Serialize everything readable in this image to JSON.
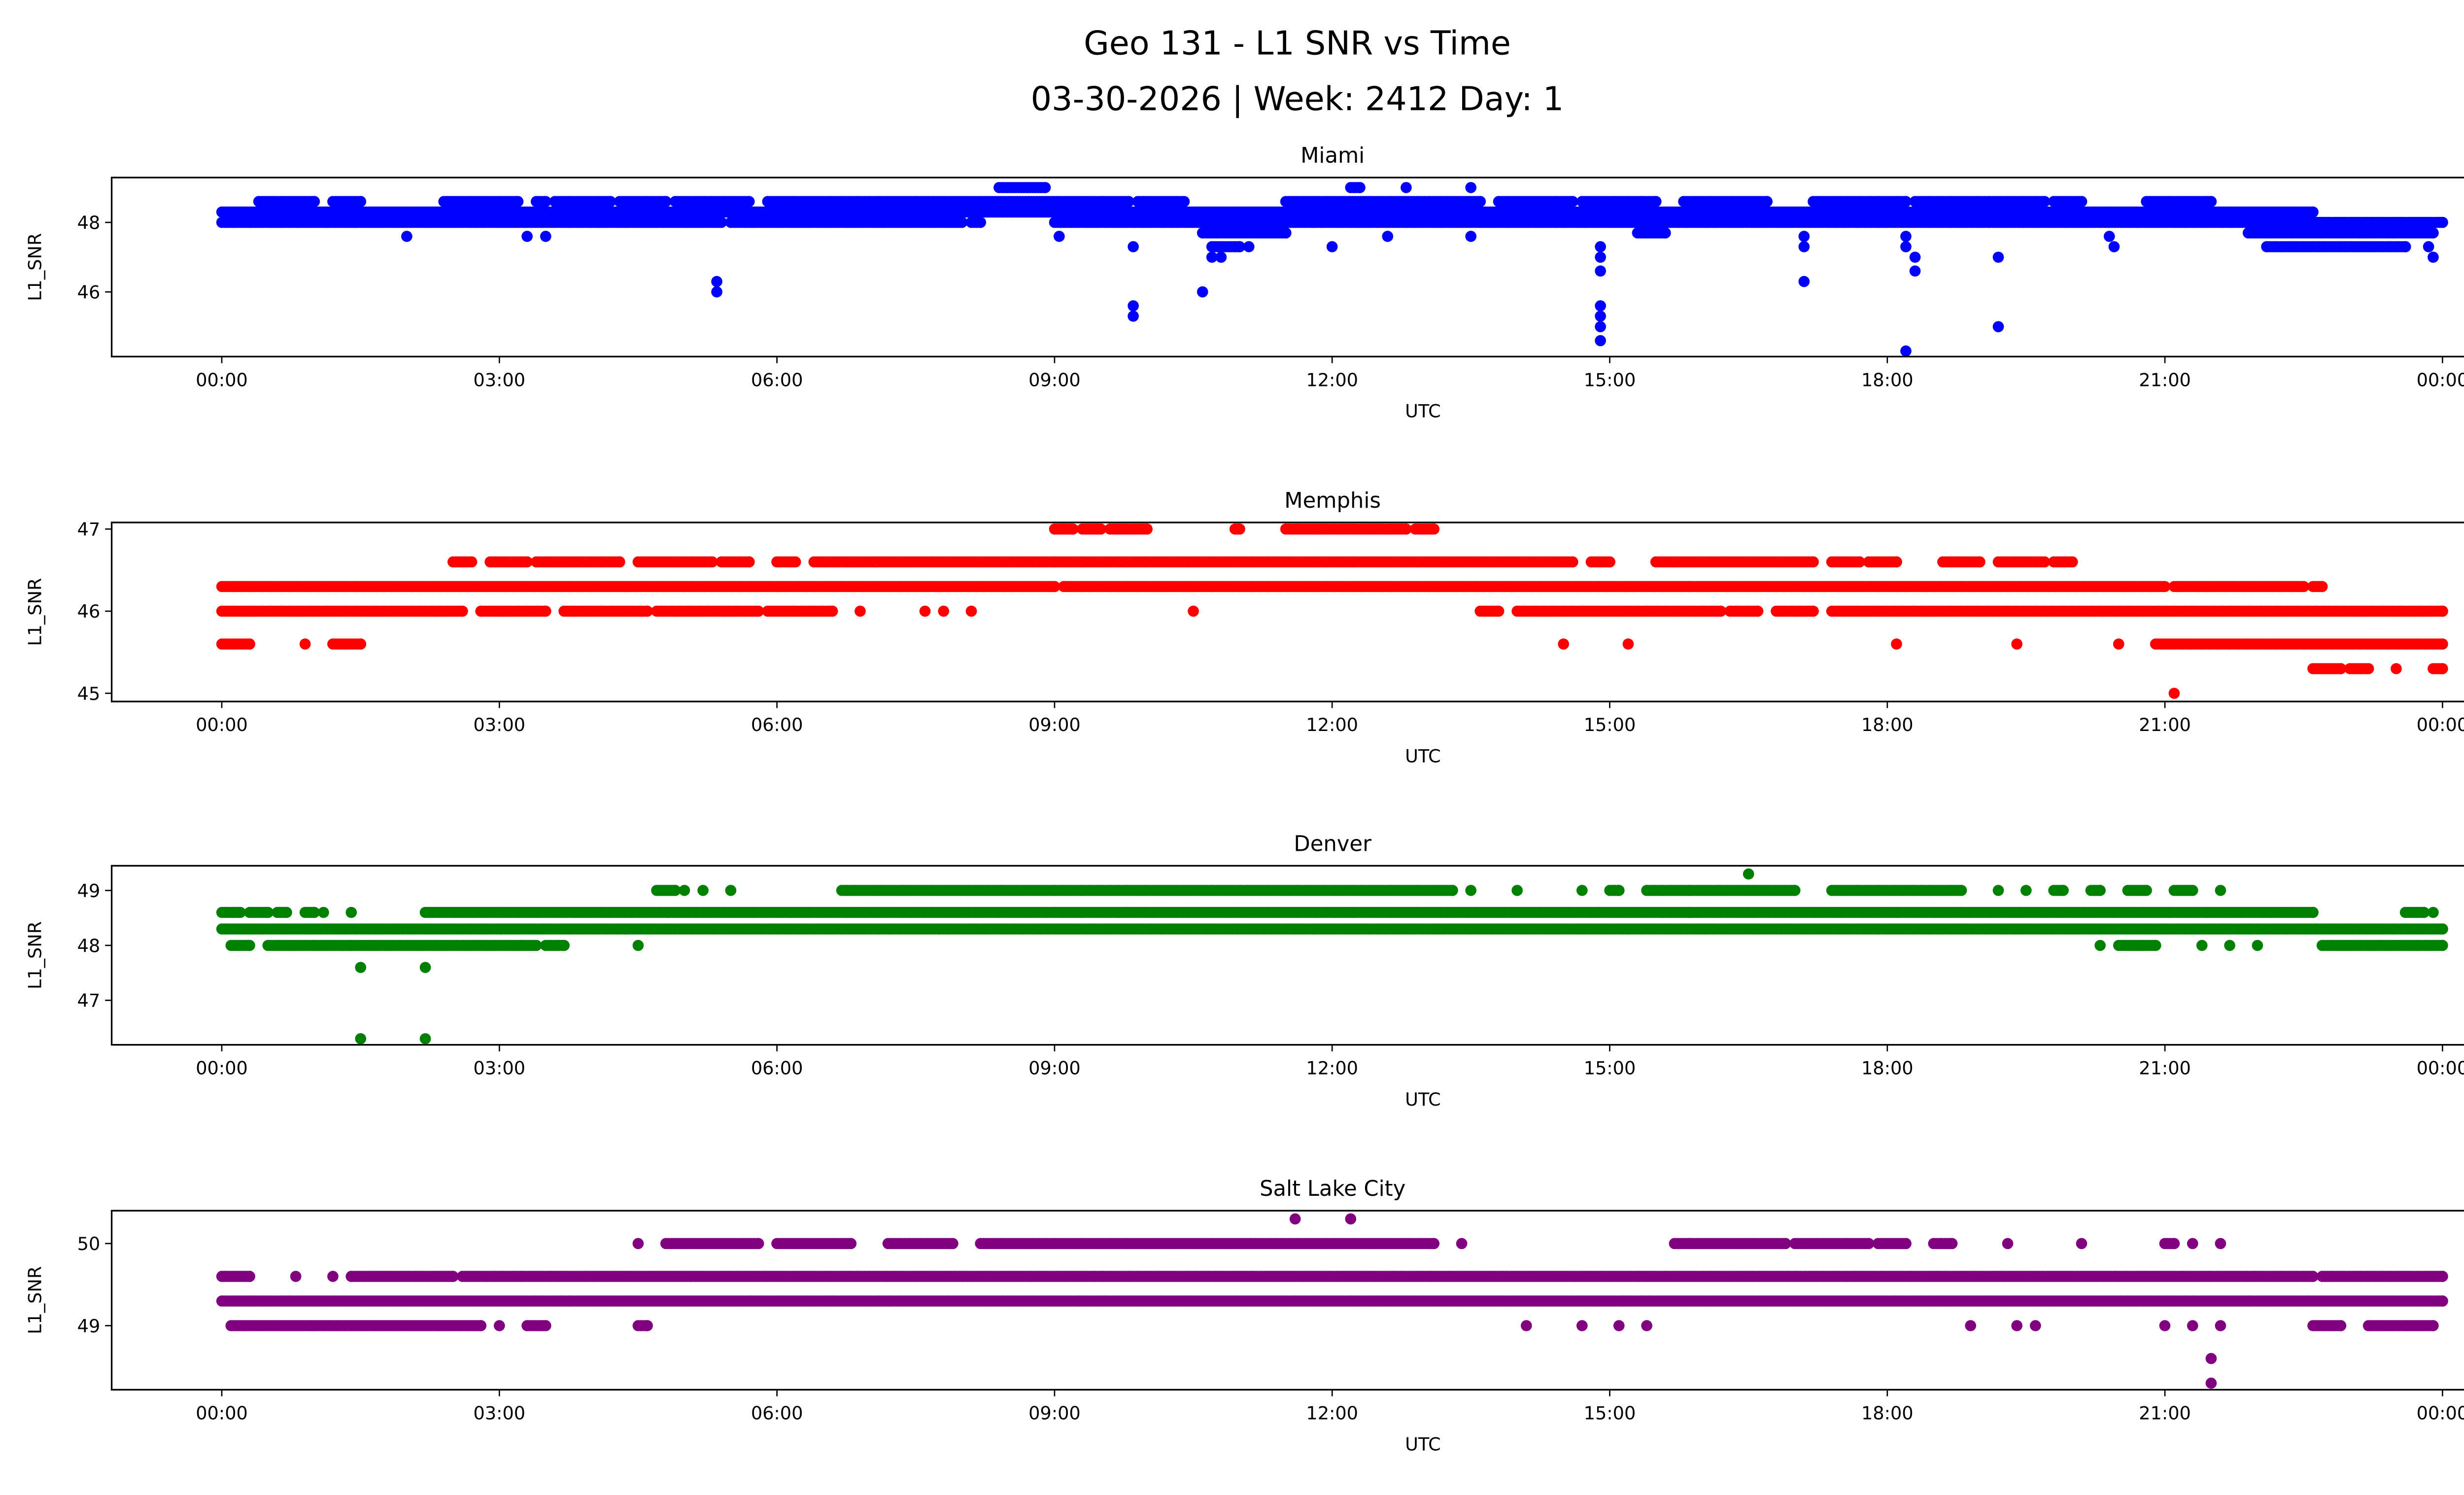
{
  "chart_data": {
    "type": "scatter",
    "title": "Geo 131 - L1 SNR vs Time",
    "subtitle": "03-30-2026 | Week: 2412 Day: 1",
    "x_unit": "hours UTC",
    "xlim": [
      -1.19,
      25.2
    ],
    "xticks": [
      0,
      3,
      6,
      9,
      12,
      15,
      18,
      21,
      24
    ],
    "xtick_labels": [
      "00:00",
      "03:00",
      "06:00",
      "09:00",
      "12:00",
      "15:00",
      "18:00",
      "21:00",
      "00:00"
    ],
    "grid": false,
    "subplots": [
      {
        "title": "Miami",
        "xlabel": "UTC",
        "ylabel": "L1_SNR",
        "color": "#0000ff",
        "ylim": [
          44.14,
          49.29
        ],
        "yticks": [
          46,
          48
        ],
        "ytick_labels": [
          "46",
          "48"
        ],
        "bands": [
          {
            "snr": 48.3,
            "ranges": [
              [
                0,
                22.6
              ]
            ]
          },
          {
            "snr": 48.0,
            "ranges": [
              [
                0,
                5.4
              ],
              [
                5.5,
                8.0
              ],
              [
                8.1,
                8.2
              ],
              [
                9.0,
                24
              ]
            ]
          },
          {
            "snr": 48.6,
            "ranges": [
              [
                0.4,
                1.0
              ],
              [
                1.2,
                1.5
              ],
              [
                2.4,
                3.2
              ],
              [
                3.4,
                3.5
              ],
              [
                3.6,
                4.2
              ],
              [
                4.3,
                4.8
              ],
              [
                4.9,
                5.7
              ],
              [
                5.9,
                9.8
              ],
              [
                9.9,
                10.4
              ],
              [
                11.5,
                13.6
              ],
              [
                13.8,
                14.6
              ],
              [
                14.7,
                15.5
              ],
              [
                15.8,
                16.7
              ],
              [
                17.2,
                18.2
              ],
              [
                18.3,
                19.7
              ],
              [
                19.8,
                20.1
              ],
              [
                20.8,
                21.5
              ]
            ]
          },
          {
            "snr": 49.0,
            "ranges": [
              [
                8.4,
                8.9
              ],
              [
                12.2,
                12.3
              ],
              [
                12.8,
                12.8
              ],
              [
                13.5,
                13.5
              ]
            ]
          },
          {
            "snr": 47.7,
            "ranges": [
              [
                10.6,
                11.5
              ],
              [
                15.3,
                15.6
              ],
              [
                21.9,
                23.9
              ]
            ]
          },
          {
            "snr": 47.3,
            "ranges": [
              [
                10.7,
                11.0
              ],
              [
                22.1,
                23.6
              ]
            ]
          }
        ],
        "points": [
          [
            2.0,
            47.6
          ],
          [
            3.3,
            47.6
          ],
          [
            3.5,
            47.6
          ],
          [
            5.35,
            46.3
          ],
          [
            5.35,
            46.0
          ],
          [
            9.05,
            47.6
          ],
          [
            9.85,
            47.3
          ],
          [
            9.85,
            45.6
          ],
          [
            9.85,
            45.3
          ],
          [
            10.6,
            46.0
          ],
          [
            10.7,
            47.0
          ],
          [
            10.8,
            47.0
          ],
          [
            11.1,
            47.3
          ],
          [
            12.0,
            47.3
          ],
          [
            12.6,
            47.6
          ],
          [
            13.5,
            47.6
          ],
          [
            14.9,
            47.3
          ],
          [
            14.9,
            47.0
          ],
          [
            14.9,
            46.6
          ],
          [
            14.9,
            45.6
          ],
          [
            14.9,
            45.3
          ],
          [
            14.9,
            45.0
          ],
          [
            14.9,
            44.6
          ],
          [
            17.1,
            47.6
          ],
          [
            17.1,
            47.3
          ],
          [
            17.1,
            46.3
          ],
          [
            18.2,
            47.6
          ],
          [
            18.2,
            47.3
          ],
          [
            18.2,
            44.3
          ],
          [
            18.3,
            47.0
          ],
          [
            18.3,
            46.6
          ],
          [
            19.2,
            47.0
          ],
          [
            19.2,
            45.0
          ],
          [
            20.4,
            47.6
          ],
          [
            20.45,
            47.3
          ],
          [
            23.9,
            47.0
          ],
          [
            23.85,
            47.3
          ]
        ]
      },
      {
        "title": "Memphis",
        "xlabel": "UTC",
        "ylabel": "L1_SNR",
        "color": "#ff0000",
        "ylim": [
          44.9,
          47.08
        ],
        "yticks": [
          45,
          46,
          47
        ],
        "ytick_labels": [
          "45",
          "46",
          "47"
        ],
        "bands": [
          {
            "snr": 46.3,
            "ranges": [
              [
                0,
                9.0
              ],
              [
                9.1,
                21.0
              ],
              [
                21.1,
                22.5
              ],
              [
                22.6,
                22.7
              ]
            ]
          },
          {
            "snr": 46.0,
            "ranges": [
              [
                0,
                2.6
              ],
              [
                2.8,
                3.5
              ],
              [
                3.7,
                4.6
              ],
              [
                4.7,
                5.8
              ],
              [
                5.9,
                6.6
              ],
              [
                6.9,
                6.9
              ],
              [
                7.6,
                7.6
              ],
              [
                7.8,
                7.8
              ],
              [
                8.1,
                8.1
              ],
              [
                10.5,
                10.5
              ],
              [
                13.6,
                13.8
              ],
              [
                14.0,
                16.2
              ],
              [
                16.3,
                16.6
              ],
              [
                16.8,
                17.2
              ],
              [
                17.4,
                24
              ]
            ]
          },
          {
            "snr": 46.6,
            "ranges": [
              [
                2.5,
                2.7
              ],
              [
                2.9,
                3.3
              ],
              [
                3.4,
                4.3
              ],
              [
                4.5,
                5.3
              ],
              [
                5.4,
                5.7
              ],
              [
                6.0,
                6.2
              ],
              [
                6.4,
                14.6
              ],
              [
                14.8,
                15.0
              ],
              [
                15.5,
                17.2
              ],
              [
                17.4,
                17.7
              ],
              [
                17.8,
                18.1
              ],
              [
                18.6,
                19.0
              ],
              [
                19.2,
                19.7
              ],
              [
                19.8,
                20.0
              ]
            ]
          },
          {
            "snr": 47.0,
            "ranges": [
              [
                9.0,
                9.2
              ],
              [
                9.3,
                9.5
              ],
              [
                9.6,
                10.0
              ],
              [
                10.95,
                11.0
              ],
              [
                11.5,
                12.8
              ],
              [
                12.9,
                13.1
              ]
            ]
          },
          {
            "snr": 45.6,
            "ranges": [
              [
                0,
                0.3
              ],
              [
                0.9,
                0.9
              ],
              [
                1.2,
                1.5
              ],
              [
                14.5,
                14.5
              ],
              [
                15.2,
                15.2
              ],
              [
                18.1,
                18.1
              ],
              [
                19.4,
                19.4
              ],
              [
                20.5,
                20.5
              ],
              [
                20.9,
                24
              ]
            ]
          },
          {
            "snr": 45.3,
            "ranges": [
              [
                22.6,
                22.9
              ],
              [
                23.0,
                23.2
              ],
              [
                23.5,
                23.5
              ],
              [
                23.9,
                24
              ]
            ]
          }
        ],
        "points": [
          [
            21.1,
            45.0
          ]
        ]
      },
      {
        "title": "Denver",
        "xlabel": "UTC",
        "ylabel": "L1_SNR",
        "color": "#008000",
        "ylim": [
          46.19,
          49.45
        ],
        "yticks": [
          47,
          48,
          49
        ],
        "ytick_labels": [
          "47",
          "48",
          "49"
        ],
        "bands": [
          {
            "snr": 48.3,
            "ranges": [
              [
                0,
                24
              ]
            ]
          },
          {
            "snr": 48.6,
            "ranges": [
              [
                0,
                0.2
              ],
              [
                0.3,
                0.5
              ],
              [
                0.6,
                0.7
              ],
              [
                0.9,
                1.0
              ],
              [
                1.1,
                1.1
              ],
              [
                1.4,
                1.4
              ],
              [
                2.2,
                22.6
              ],
              [
                23.6,
                23.8
              ],
              [
                23.9,
                23.9
              ]
            ]
          },
          {
            "snr": 48.0,
            "ranges": [
              [
                0.1,
                0.3
              ],
              [
                0.5,
                3.4
              ],
              [
                3.5,
                3.7
              ],
              [
                4.5,
                4.5
              ],
              [
                20.3,
                20.3
              ],
              [
                20.5,
                20.9
              ],
              [
                21.4,
                21.4
              ],
              [
                21.7,
                21.7
              ],
              [
                22.0,
                22.0
              ],
              [
                22.7,
                24
              ]
            ]
          },
          {
            "snr": 49.0,
            "ranges": [
              [
                4.7,
                4.9
              ],
              [
                5.0,
                5.0
              ],
              [
                5.2,
                5.2
              ],
              [
                5.5,
                5.5
              ],
              [
                6.7,
                13.3
              ],
              [
                13.5,
                13.5
              ],
              [
                14.0,
                14.0
              ],
              [
                14.7,
                14.7
              ],
              [
                15.0,
                15.1
              ],
              [
                15.4,
                17.0
              ],
              [
                17.4,
                18.8
              ],
              [
                19.2,
                19.2
              ],
              [
                19.5,
                19.5
              ],
              [
                19.8,
                19.9
              ],
              [
                20.2,
                20.3
              ],
              [
                20.6,
                20.8
              ],
              [
                21.1,
                21.3
              ],
              [
                21.6,
                21.6
              ]
            ]
          }
        ],
        "points": [
          [
            16.5,
            49.3
          ],
          [
            1.5,
            47.6
          ],
          [
            2.2,
            47.6
          ],
          [
            1.5,
            46.3
          ],
          [
            2.2,
            46.3
          ]
        ]
      },
      {
        "title": "Salt Lake City",
        "xlabel": "UTC",
        "ylabel": "L1_SNR",
        "color": "#800080",
        "ylim": [
          48.22,
          50.4
        ],
        "yticks": [
          49,
          50
        ],
        "ytick_labels": [
          "49",
          "50"
        ],
        "bands": [
          {
            "snr": 49.3,
            "ranges": [
              [
                0,
                24
              ]
            ]
          },
          {
            "snr": 49.6,
            "ranges": [
              [
                0,
                0.3
              ],
              [
                0.8,
                0.8
              ],
              [
                1.2,
                1.2
              ],
              [
                1.4,
                2.5
              ],
              [
                2.6,
                22.6
              ],
              [
                22.7,
                24
              ]
            ]
          },
          {
            "snr": 49.0,
            "ranges": [
              [
                0.1,
                2.8
              ],
              [
                3.0,
                3.0
              ],
              [
                3.3,
                3.5
              ],
              [
                4.5,
                4.6
              ],
              [
                14.1,
                14.1
              ],
              [
                14.7,
                14.7
              ],
              [
                15.1,
                15.1
              ],
              [
                15.4,
                15.4
              ],
              [
                18.9,
                18.9
              ],
              [
                19.4,
                19.4
              ],
              [
                19.6,
                19.6
              ],
              [
                21.0,
                21.0
              ],
              [
                21.3,
                21.3
              ],
              [
                21.6,
                21.6
              ],
              [
                22.6,
                22.9
              ],
              [
                23.2,
                23.9
              ]
            ]
          },
          {
            "snr": 50.0,
            "ranges": [
              [
                4.5,
                4.5
              ],
              [
                4.8,
                5.8
              ],
              [
                6.0,
                6.8
              ],
              [
                7.2,
                7.9
              ],
              [
                8.2,
                13.1
              ],
              [
                13.4,
                13.4
              ],
              [
                15.7,
                16.9
              ],
              [
                17.0,
                17.8
              ],
              [
                17.9,
                18.2
              ],
              [
                18.5,
                18.7
              ],
              [
                19.3,
                19.3
              ],
              [
                20.1,
                20.1
              ],
              [
                21.0,
                21.1
              ],
              [
                21.3,
                21.3
              ],
              [
                21.6,
                21.6
              ]
            ]
          }
        ],
        "points": [
          [
            11.6,
            50.3
          ],
          [
            12.2,
            50.3
          ],
          [
            21.5,
            48.6
          ],
          [
            21.5,
            48.3
          ]
        ]
      }
    ]
  }
}
